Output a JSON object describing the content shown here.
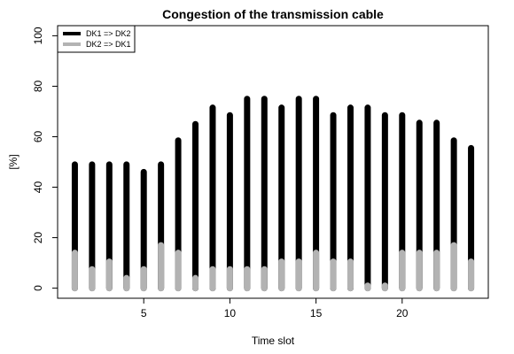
{
  "chart_data": {
    "type": "bar",
    "title": "Congestion of the transmission cable",
    "xlabel": "Time slot",
    "ylabel": "[%]",
    "xlim": [
      0,
      25
    ],
    "ylim": [
      -4,
      104
    ],
    "x_ticks": [
      5,
      10,
      15,
      20
    ],
    "y_ticks": [
      0,
      20,
      40,
      60,
      80,
      100
    ],
    "grid": false,
    "legend_position": "top-left",
    "x": [
      1,
      2,
      3,
      4,
      5,
      6,
      7,
      8,
      9,
      10,
      11,
      12,
      13,
      14,
      15,
      16,
      17,
      18,
      19,
      20,
      21,
      22,
      23,
      24
    ],
    "series": [
      {
        "name": "DK1 => DK2",
        "color": "#000000",
        "values": [
          49,
          49,
          49,
          49,
          46,
          49,
          58.5,
          65,
          71.5,
          68.5,
          75,
          75,
          71.5,
          75,
          75,
          68.5,
          71.5,
          71.5,
          68.5,
          68.5,
          65.5,
          65.5,
          58.5,
          55.5
        ]
      },
      {
        "name": "DK2 => DK1",
        "color": "#b3b3b3",
        "values": [
          14,
          7.5,
          10.5,
          4,
          7.5,
          17,
          14,
          4,
          7.5,
          7.5,
          7.5,
          7.5,
          10.5,
          10.5,
          14,
          10.5,
          10.5,
          1,
          1,
          14,
          14,
          14,
          17,
          10.5
        ]
      }
    ]
  }
}
